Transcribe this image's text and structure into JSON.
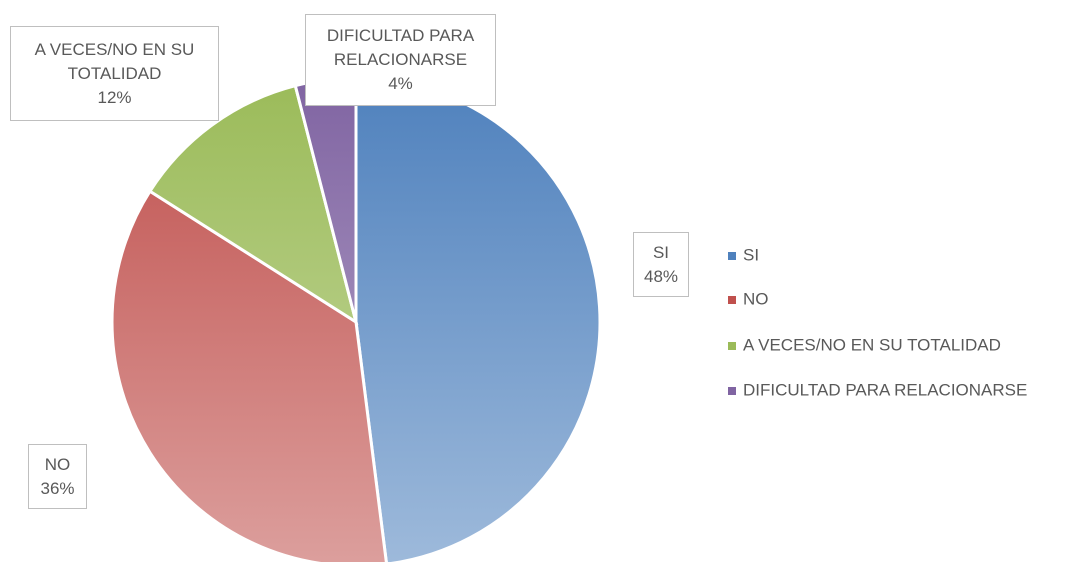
{
  "chart_data": {
    "type": "pie",
    "categories": [
      "SI",
      "NO",
      "A VECES/NO EN SU TOTALIDAD",
      "DIFICULTAD PARA RELACIONARSE"
    ],
    "values": [
      48,
      36,
      12,
      4
    ],
    "value_labels": [
      "48%",
      "36%",
      "12%",
      "4%"
    ],
    "colors": [
      "#4f81bd",
      "#c0504d",
      "#9bbb59",
      "#8064a2"
    ],
    "legend": "right"
  }
}
